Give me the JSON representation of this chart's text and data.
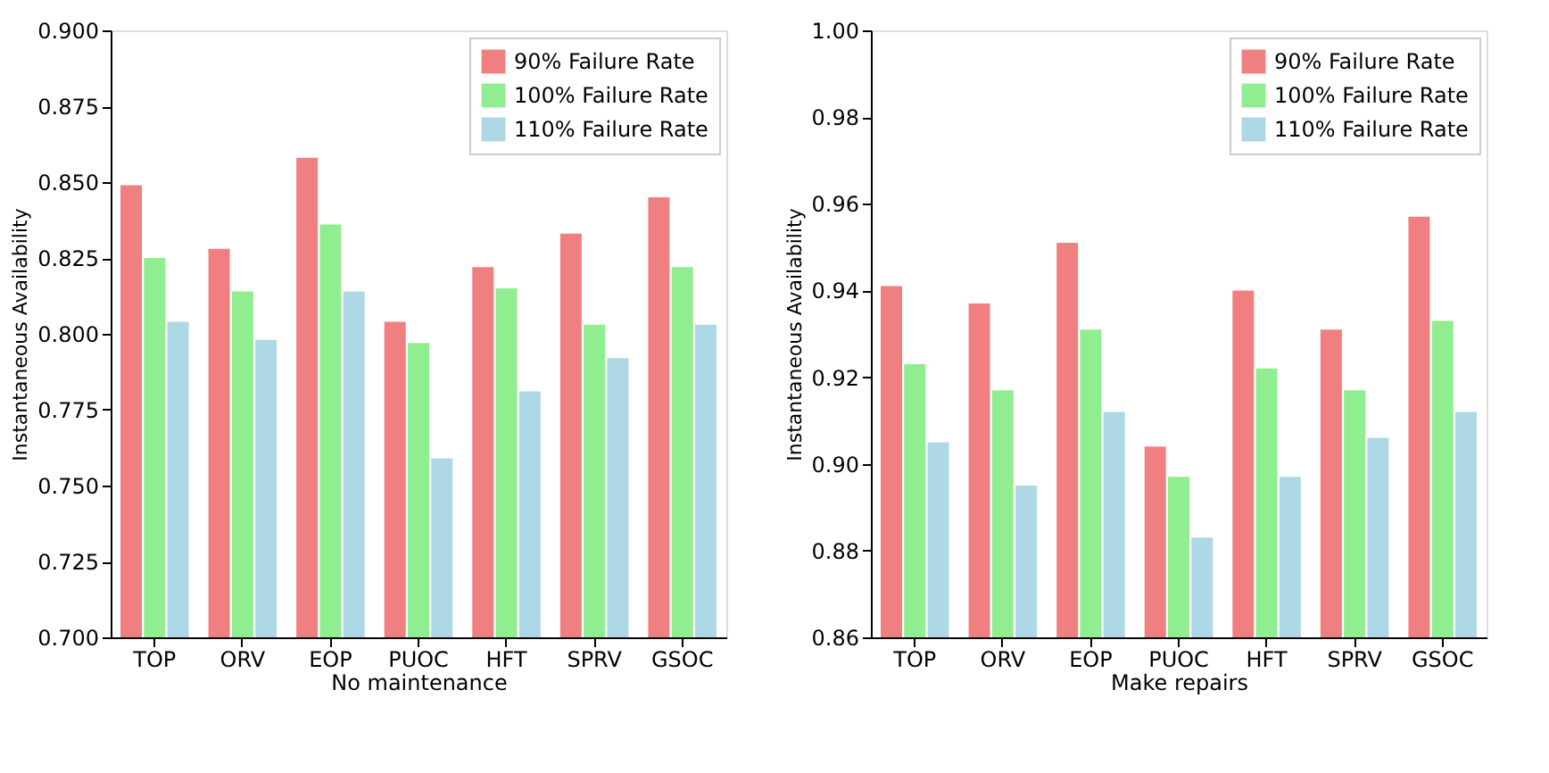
{
  "chart_data": [
    {
      "type": "bar",
      "xlabel": "No maintenance",
      "ylabel": "Instantaneous Availability",
      "categories": [
        "TOP",
        "ORV",
        "EOP",
        "PUOC",
        "HFT",
        "SPRV",
        "GSOC"
      ],
      "series": [
        {
          "name": "90% Failure Rate",
          "color": "#f08080",
          "values": [
            0.849,
            0.828,
            0.858,
            0.804,
            0.822,
            0.833,
            0.845
          ]
        },
        {
          "name": "100% Failure Rate",
          "color": "#90ee90",
          "values": [
            0.825,
            0.814,
            0.836,
            0.797,
            0.815,
            0.803,
            0.822
          ]
        },
        {
          "name": "110% Failure Rate",
          "color": "#add8e6",
          "values": [
            0.804,
            0.798,
            0.814,
            0.759,
            0.781,
            0.792,
            0.803
          ]
        }
      ],
      "ylim": [
        0.7,
        0.9
      ],
      "yticks": [
        {
          "value": 0.7,
          "label": "0.700"
        },
        {
          "value": 0.725,
          "label": "0.725"
        },
        {
          "value": 0.75,
          "label": "0.750"
        },
        {
          "value": 0.775,
          "label": "0.775"
        },
        {
          "value": 0.8,
          "label": "0.800"
        },
        {
          "value": 0.825,
          "label": "0.825"
        },
        {
          "value": 0.85,
          "label": "0.850"
        },
        {
          "value": 0.875,
          "label": "0.875"
        },
        {
          "value": 0.9,
          "label": "0.900"
        }
      ],
      "grid": false,
      "legend": "top right"
    },
    {
      "type": "bar",
      "xlabel": "Make repairs",
      "ylabel": "Instantaneous Availability",
      "categories": [
        "TOP",
        "ORV",
        "EOP",
        "PUOC",
        "HFT",
        "SPRV",
        "GSOC"
      ],
      "series": [
        {
          "name": "90% Failure Rate",
          "color": "#f08080",
          "values": [
            0.941,
            0.937,
            0.951,
            0.904,
            0.94,
            0.931,
            0.957
          ]
        },
        {
          "name": "100% Failure Rate",
          "color": "#90ee90",
          "values": [
            0.923,
            0.917,
            0.931,
            0.897,
            0.922,
            0.917,
            0.933
          ]
        },
        {
          "name": "110% Failure Rate",
          "color": "#add8e6",
          "values": [
            0.905,
            0.895,
            0.912,
            0.883,
            0.897,
            0.906,
            0.912
          ]
        }
      ],
      "ylim": [
        0.86,
        1.0
      ],
      "yticks": [
        {
          "value": 0.86,
          "label": "0.86"
        },
        {
          "value": 0.88,
          "label": "0.88"
        },
        {
          "value": 0.9,
          "label": "0.90"
        },
        {
          "value": 0.92,
          "label": "0.92"
        },
        {
          "value": 0.94,
          "label": "0.94"
        },
        {
          "value": 0.96,
          "label": "0.96"
        },
        {
          "value": 0.98,
          "label": "0.98"
        },
        {
          "value": 1.0,
          "label": "1.00"
        }
      ],
      "grid": false,
      "legend": "top right"
    }
  ]
}
